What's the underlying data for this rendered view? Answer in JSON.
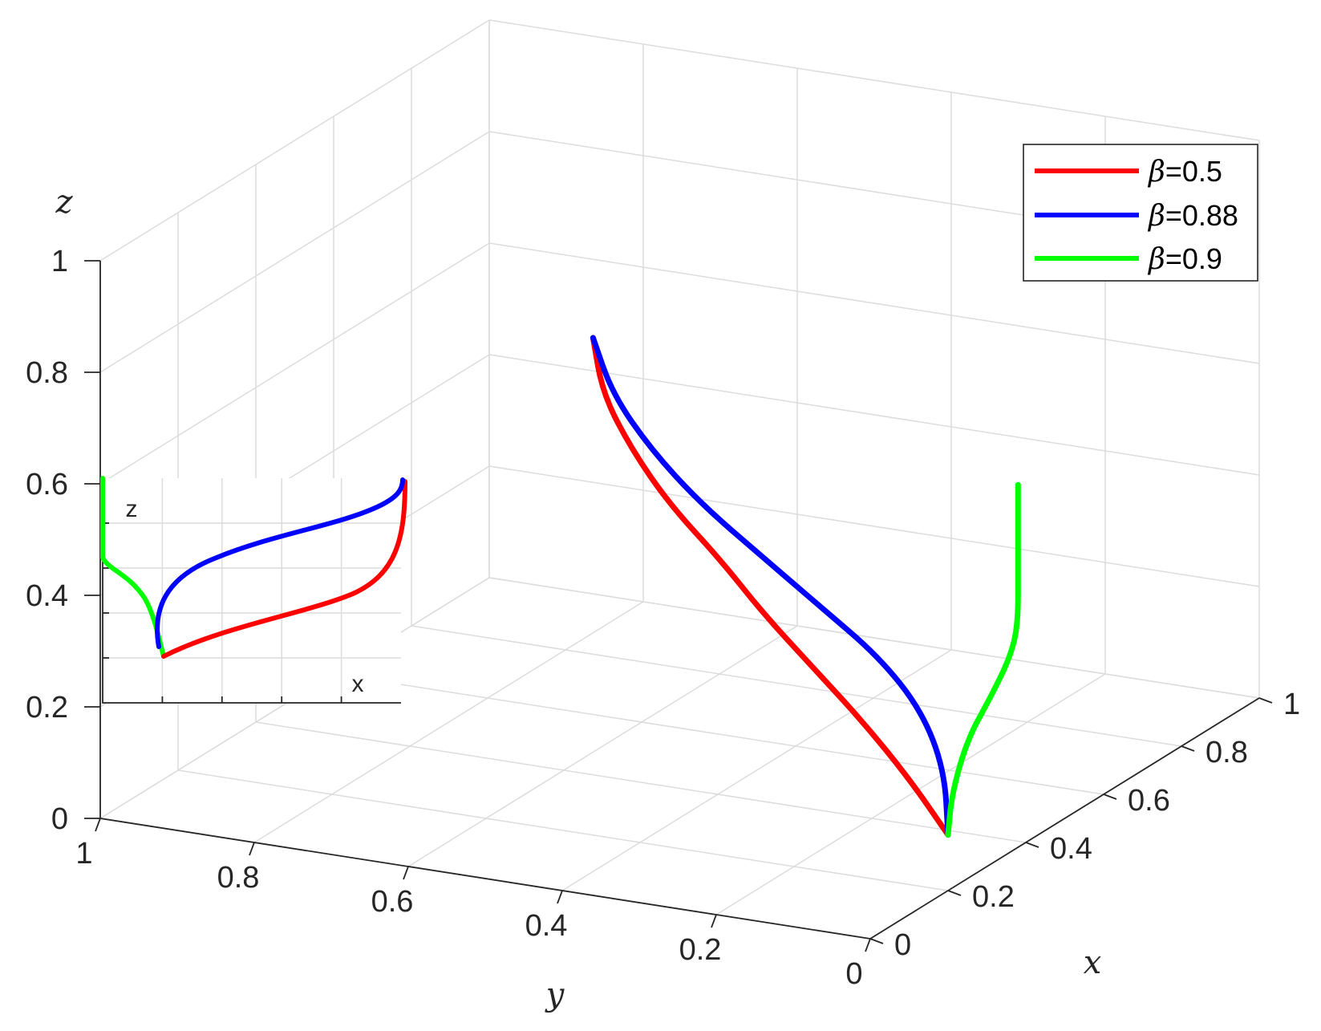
{
  "chart_data": {
    "type": "line",
    "projection": "3d",
    "xlabel": "x",
    "ylabel": "y",
    "zlabel": "z",
    "xlim": [
      0,
      1
    ],
    "ylim": [
      0,
      1
    ],
    "zlim": [
      0,
      1
    ],
    "x_ticks": [
      "0",
      "0.2",
      "0.4",
      "0.6",
      "0.8",
      "1"
    ],
    "y_ticks": [
      "0",
      "0.2",
      "0.4",
      "0.6",
      "0.8",
      "1"
    ],
    "z_ticks": [
      "0",
      "0.2",
      "0.4",
      "0.6",
      "0.8",
      "1"
    ],
    "grid": true,
    "legend_position": "top-right",
    "legend_symbol": "β",
    "series": [
      {
        "name": "=0.5",
        "color": "#ff0000",
        "points": [
          [
            0.2,
            0.0,
            0.1
          ],
          [
            0.18,
            0.04,
            0.2
          ],
          [
            0.16,
            0.09,
            0.3
          ],
          [
            0.13,
            0.14,
            0.4
          ],
          [
            0.1,
            0.19,
            0.5
          ],
          [
            0.07,
            0.23,
            0.6
          ],
          [
            0.04,
            0.28,
            0.7
          ],
          [
            0.02,
            0.32,
            0.8
          ],
          [
            0.005,
            0.35,
            0.9
          ],
          [
            0.0,
            0.36,
            1.0
          ]
        ]
      },
      {
        "name": "=0.88",
        "color": "#0000ff",
        "points": [
          [
            0.2,
            0.0,
            0.1
          ],
          [
            0.23,
            0.02,
            0.2
          ],
          [
            0.23,
            0.05,
            0.3
          ],
          [
            0.2,
            0.09,
            0.4
          ],
          [
            0.15,
            0.14,
            0.5
          ],
          [
            0.1,
            0.19,
            0.6
          ],
          [
            0.06,
            0.25,
            0.7
          ],
          [
            0.03,
            0.3,
            0.8
          ],
          [
            0.01,
            0.34,
            0.9
          ],
          [
            0.0,
            0.36,
            1.0
          ]
        ]
      },
      {
        "name": "=0.9",
        "color": "#00ff00",
        "points": [
          [
            0.2,
            0.0,
            0.1
          ],
          [
            0.21,
            0.0,
            0.17
          ],
          [
            0.25,
            0.0,
            0.25
          ],
          [
            0.31,
            0.0,
            0.3
          ],
          [
            0.36,
            0.0,
            0.35
          ],
          [
            0.38,
            0.0,
            0.4
          ],
          [
            0.38,
            0.0,
            0.5
          ],
          [
            0.38,
            0.0,
            0.6
          ],
          [
            0.38,
            0.0,
            0.65
          ]
        ]
      }
    ],
    "inset": {
      "xlabel": "x",
      "ylabel": "z",
      "description_series": [
        "=0.5",
        "=0.88",
        "=0.9"
      ]
    }
  }
}
